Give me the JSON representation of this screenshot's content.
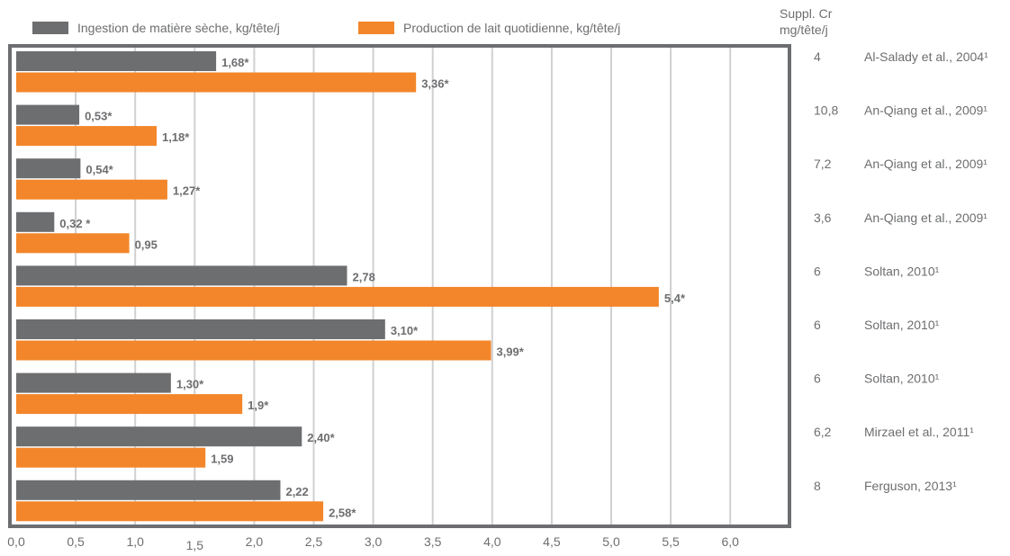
{
  "chart_data": {
    "type": "bar",
    "orientation": "horizontal",
    "legend_position": "top",
    "grid": true,
    "xlim": [
      0,
      6.5
    ],
    "x_ticks": [
      "0,0",
      "0,5",
      "1,0",
      "1,5",
      "2,0",
      "2,5",
      "3,0",
      "3,5",
      "4,0",
      "4,5",
      "5,0",
      "5,5",
      "6,0"
    ],
    "side_header": [
      "Suppl. Cr",
      "mg/tête/j"
    ],
    "rows": [
      {
        "dose": "4",
        "reference": "Al-Salady et al., 2004¹"
      },
      {
        "dose": "10,8",
        "reference": "An-Qiang et al., 2009¹"
      },
      {
        "dose": "7,2",
        "reference": "An-Qiang et al., 2009¹"
      },
      {
        "dose": "3,6",
        "reference": "An-Qiang et al., 2009¹"
      },
      {
        "dose": "6",
        "reference": "Soltan, 2010¹"
      },
      {
        "dose": "6",
        "reference": "Soltan, 2010¹"
      },
      {
        "dose": "6",
        "reference": "Soltan, 2010¹"
      },
      {
        "dose": "6,2",
        "reference": "Mirzael et al., 2011¹"
      },
      {
        "dose": "8",
        "reference": "Ferguson, 2013¹"
      }
    ],
    "series": [
      {
        "name": "Ingestion de matière sèche, kg/tête/j",
        "color": "#6d6e70",
        "values": [
          1.68,
          0.53,
          0.54,
          0.32,
          2.78,
          3.1,
          1.3,
          2.4,
          2.22
        ],
        "labels": [
          "1,68*",
          "0,53*",
          "0,54*",
          "0,32 *",
          "2,78",
          "3,10*",
          "1,30*",
          "2,40*",
          "2,22"
        ]
      },
      {
        "name": "Production de lait quotidienne, kg/tête/j",
        "color": "#f3862a",
        "values": [
          3.36,
          1.18,
          1.27,
          0.95,
          5.4,
          3.99,
          1.9,
          1.59,
          2.58
        ],
        "labels": [
          "3,36*",
          "1,18*",
          "1,27*",
          "0,95",
          "5,4*",
          "3,99*",
          "1,9*",
          "1,59",
          "2,58*"
        ]
      }
    ]
  }
}
